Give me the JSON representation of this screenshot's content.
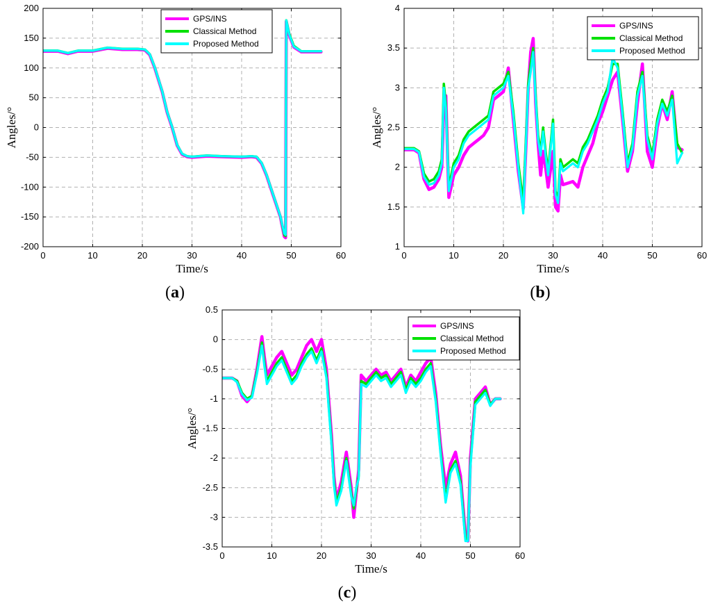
{
  "colors": {
    "gps_ins": "#ff00ff",
    "classical": "#00e000",
    "proposed": "#00ffff"
  },
  "chart_data": [
    {
      "id": "a",
      "type": "line",
      "panel_label": "(a)",
      "xlabel": "Time/s",
      "ylabel": "Angles/°",
      "xlim": [
        0,
        60
      ],
      "ylim": [
        -200,
        200
      ],
      "xticks": [
        0,
        10,
        20,
        30,
        40,
        50,
        60
      ],
      "yticks": [
        -200,
        -150,
        -100,
        -50,
        0,
        50,
        100,
        150,
        200
      ],
      "grid": true,
      "legend": "top-right",
      "series": [
        {
          "name": "GPS/INS",
          "color_key": "gps_ins",
          "x": [
            0,
            3,
            5,
            7,
            10,
            13,
            16,
            19,
            20.5,
            21.5,
            22.5,
            24,
            25,
            26,
            27,
            28,
            29,
            30,
            33,
            36,
            40,
            42,
            43,
            44,
            45,
            46,
            47,
            47.8,
            48.6,
            48.85,
            49,
            49.6,
            50.5,
            52,
            54,
            56
          ],
          "y": [
            128,
            128,
            124,
            128,
            128,
            133,
            131,
            131,
            130,
            122,
            100,
            60,
            25,
            0,
            -30,
            -45,
            -49,
            -50,
            -48,
            -49,
            -50,
            -49,
            -50,
            -60,
            -80,
            -105,
            -130,
            -150,
            -183,
            -185,
            178,
            155,
            135,
            127,
            127,
            127
          ]
        },
        {
          "name": "Classical Method",
          "color_key": "classical",
          "x": [
            0,
            3,
            5,
            7,
            10,
            13,
            16,
            19,
            20.5,
            21.5,
            22.5,
            24,
            25,
            26,
            27,
            28,
            29,
            30,
            33,
            36,
            40,
            42,
            43,
            44,
            45,
            46,
            47,
            47.8,
            48.6,
            48.85,
            49,
            49.6,
            50.5,
            52,
            54,
            56
          ],
          "y": [
            129,
            129,
            125,
            129,
            129,
            134,
            132,
            132,
            131,
            123,
            101,
            61,
            26,
            1,
            -29,
            -44,
            -48,
            -49,
            -47,
            -48,
            -49,
            -48,
            -49,
            -59,
            -79,
            -104,
            -129,
            -149,
            -180,
            -182,
            180,
            157,
            137,
            128,
            128,
            128
          ]
        },
        {
          "name": "Proposed Method",
          "color_key": "proposed",
          "x": [
            0,
            3,
            5,
            7,
            10,
            13,
            16,
            19,
            20.5,
            21.5,
            22.5,
            24,
            25,
            26,
            27,
            28,
            29,
            30,
            33,
            36,
            40,
            42,
            43,
            44,
            45,
            46,
            47,
            47.8,
            48.6,
            48.85,
            49,
            49.6,
            50.5,
            52,
            54,
            56
          ],
          "y": [
            129,
            129,
            125,
            129,
            129,
            134,
            132,
            132,
            131,
            123,
            101,
            61,
            26,
            1,
            -29,
            -44,
            -48,
            -49,
            -47,
            -48,
            -49,
            -48,
            -49,
            -59,
            -79,
            -104,
            -129,
            -149,
            -178,
            -180,
            180,
            156,
            136,
            128,
            128,
            128
          ]
        }
      ]
    },
    {
      "id": "b",
      "type": "line",
      "panel_label": "(b)",
      "xlabel": "Time/s",
      "ylabel": "Angles/°",
      "xlim": [
        0,
        60
      ],
      "ylim": [
        1,
        4
      ],
      "xticks": [
        0,
        10,
        20,
        30,
        40,
        50,
        60
      ],
      "yticks": [
        1,
        1.5,
        2,
        2.5,
        3,
        3.5,
        4
      ],
      "grid": true,
      "legend": "top-right",
      "series": [
        {
          "name": "GPS/INS",
          "color_key": "gps_ins",
          "x": [
            0,
            2,
            3,
            4,
            5,
            6,
            7,
            7.6,
            8,
            8.4,
            9,
            10,
            11,
            12,
            13,
            14,
            15,
            16,
            17,
            18,
            19,
            20,
            21,
            22,
            23,
            24,
            24.5,
            25,
            25.5,
            26,
            26.5,
            27,
            27.5,
            28,
            28.5,
            29,
            30,
            30.5,
            31,
            31.5,
            32,
            33,
            34,
            35,
            36,
            37,
            38,
            39,
            40,
            41,
            42,
            43,
            44,
            45,
            46,
            47,
            48,
            49,
            50,
            51,
            52,
            53,
            54,
            55,
            56
          ],
          "y": [
            2.22,
            2.22,
            2.18,
            1.85,
            1.72,
            1.75,
            1.85,
            2.0,
            2.8,
            2.9,
            1.62,
            1.9,
            2.0,
            2.15,
            2.25,
            2.3,
            2.35,
            2.4,
            2.5,
            2.85,
            2.9,
            2.95,
            3.25,
            2.6,
            1.95,
            1.48,
            2.2,
            3.0,
            3.45,
            3.62,
            2.8,
            2.3,
            1.9,
            2.2,
            2.0,
            1.75,
            2.2,
            1.5,
            1.45,
            1.9,
            1.78,
            1.8,
            1.82,
            1.75,
            2.0,
            2.15,
            2.3,
            2.55,
            2.7,
            2.9,
            3.1,
            3.2,
            2.6,
            1.95,
            2.2,
            2.8,
            3.3,
            2.2,
            2.0,
            2.5,
            2.8,
            2.6,
            2.95,
            2.25,
            2.22
          ]
        },
        {
          "name": "Classical Method",
          "color_key": "classical",
          "x": [
            0,
            2,
            3,
            4,
            5,
            6,
            7,
            7.6,
            8,
            8.4,
            9,
            10,
            11,
            12,
            13,
            14,
            15,
            16,
            17,
            18,
            19,
            20,
            21,
            22,
            23,
            24,
            24.5,
            25,
            25.5,
            26,
            26.5,
            27,
            27.5,
            28,
            28.5,
            29,
            30,
            30.5,
            31,
            31.5,
            32,
            33,
            34,
            35,
            36,
            37,
            38,
            39,
            40,
            41,
            42,
            43,
            44,
            45,
            46,
            47,
            48,
            49,
            50,
            51,
            52,
            53,
            54,
            55,
            56
          ],
          "y": [
            2.24,
            2.24,
            2.2,
            1.92,
            1.82,
            1.85,
            1.95,
            2.1,
            3.05,
            2.8,
            1.75,
            2.05,
            2.15,
            2.35,
            2.45,
            2.5,
            2.55,
            2.6,
            2.65,
            2.95,
            3.0,
            3.05,
            3.2,
            2.7,
            2.05,
            1.55,
            2.3,
            3.05,
            3.3,
            3.5,
            2.9,
            2.4,
            2.2,
            2.5,
            2.2,
            1.95,
            2.6,
            1.7,
            1.6,
            2.1,
            2.0,
            2.05,
            2.1,
            2.05,
            2.25,
            2.35,
            2.5,
            2.65,
            2.85,
            3.0,
            3.3,
            3.3,
            2.7,
            2.05,
            2.3,
            2.95,
            3.2,
            2.4,
            2.15,
            2.6,
            2.85,
            2.7,
            2.9,
            2.3,
            2.18
          ]
        },
        {
          "name": "Proposed Method",
          "color_key": "proposed",
          "x": [
            0,
            2,
            3,
            4,
            5,
            6,
            7,
            7.6,
            8,
            8.4,
            9,
            10,
            11,
            12,
            13,
            14,
            15,
            16,
            17,
            18,
            19,
            20,
            21,
            22,
            23,
            24,
            24.5,
            25,
            25.5,
            26,
            26.5,
            27,
            27.5,
            28,
            28.5,
            29,
            30,
            30.5,
            31,
            31.5,
            32,
            33,
            34,
            35,
            36,
            37,
            38,
            39,
            40,
            41,
            42,
            43,
            44,
            45,
            46,
            47,
            48,
            49,
            50,
            51,
            52,
            53,
            54,
            55,
            56
          ],
          "y": [
            2.23,
            2.23,
            2.19,
            1.88,
            1.78,
            1.8,
            1.9,
            2.05,
            3.0,
            2.75,
            1.7,
            2.0,
            2.1,
            2.3,
            2.4,
            2.45,
            2.5,
            2.55,
            2.6,
            2.9,
            2.95,
            3.0,
            3.15,
            2.65,
            2.0,
            1.42,
            2.25,
            3.0,
            3.2,
            3.45,
            2.85,
            2.35,
            2.15,
            2.45,
            2.15,
            1.9,
            2.55,
            1.65,
            1.55,
            2.05,
            1.95,
            2.0,
            2.05,
            2.0,
            2.2,
            2.3,
            2.45,
            2.6,
            2.8,
            2.95,
            3.38,
            3.25,
            2.65,
            2.0,
            2.25,
            2.9,
            3.15,
            2.35,
            2.1,
            2.55,
            2.8,
            2.65,
            2.85,
            2.05,
            2.18
          ]
        }
      ]
    },
    {
      "id": "c",
      "type": "line",
      "panel_label": "(c)",
      "xlabel": "Time/s",
      "ylabel": "Angles/°",
      "xlim": [
        0,
        60
      ],
      "ylim": [
        -3.5,
        0.5
      ],
      "xticks": [
        0,
        10,
        20,
        30,
        40,
        50,
        60
      ],
      "yticks": [
        -3.5,
        -3,
        -2.5,
        -2,
        -1.5,
        -1,
        -0.5,
        0,
        0.5
      ],
      "grid": true,
      "legend": "top-right",
      "series": [
        {
          "name": "GPS/INS",
          "color_key": "gps_ins",
          "x": [
            0,
            2,
            3,
            4,
            5,
            6,
            7,
            8,
            8.5,
            9,
            10,
            11,
            12,
            13,
            14,
            15,
            16,
            17,
            18,
            19,
            20,
            21,
            22,
            22.5,
            23,
            24,
            25,
            26,
            26.5,
            27,
            27.5,
            28,
            29,
            30,
            31,
            32,
            33,
            34,
            35,
            36,
            37,
            38,
            39,
            40,
            41,
            42,
            43,
            44,
            45,
            46,
            47,
            48,
            49,
            49.5,
            50,
            51,
            52,
            53,
            54,
            55,
            56
          ],
          "y": [
            -0.65,
            -0.65,
            -0.7,
            -0.95,
            -1.05,
            -0.95,
            -0.5,
            0.05,
            -0.3,
            -0.6,
            -0.45,
            -0.3,
            -0.2,
            -0.4,
            -0.6,
            -0.5,
            -0.3,
            -0.1,
            0.0,
            -0.2,
            0.0,
            -0.5,
            -1.6,
            -2.3,
            -2.7,
            -2.4,
            -1.9,
            -2.5,
            -3.0,
            -2.6,
            -2.2,
            -0.6,
            -0.7,
            -0.6,
            -0.5,
            -0.6,
            -0.55,
            -0.7,
            -0.6,
            -0.5,
            -0.8,
            -0.6,
            -0.7,
            -0.55,
            -0.4,
            -0.3,
            -0.9,
            -1.8,
            -2.5,
            -2.1,
            -1.9,
            -2.3,
            -3.3,
            -3.4,
            -2.0,
            -1.0,
            -0.9,
            -0.8,
            -1.1,
            -1.0,
            -1.0
          ]
        },
        {
          "name": "Classical Method",
          "color_key": "classical",
          "x": [
            0,
            2,
            3,
            4,
            5,
            6,
            7,
            8,
            8.5,
            9,
            10,
            11,
            12,
            13,
            14,
            15,
            16,
            17,
            18,
            19,
            20,
            21,
            22,
            22.5,
            23,
            24,
            25,
            26,
            26.5,
            27,
            27.5,
            28,
            29,
            30,
            31,
            32,
            33,
            34,
            35,
            36,
            37,
            38,
            39,
            40,
            41,
            42,
            43,
            44,
            45,
            46,
            47,
            48,
            49,
            49.5,
            50,
            51,
            52,
            53,
            54,
            55,
            56
          ],
          "y": [
            -0.65,
            -0.65,
            -0.7,
            -0.9,
            -1.0,
            -0.95,
            -0.55,
            -0.05,
            -0.4,
            -0.7,
            -0.55,
            -0.4,
            -0.3,
            -0.5,
            -0.7,
            -0.6,
            -0.4,
            -0.25,
            -0.15,
            -0.35,
            -0.15,
            -0.6,
            -1.7,
            -2.4,
            -2.75,
            -2.5,
            -2.0,
            -2.6,
            -2.85,
            -2.55,
            -2.3,
            -0.7,
            -0.75,
            -0.65,
            -0.55,
            -0.65,
            -0.6,
            -0.75,
            -0.65,
            -0.55,
            -0.85,
            -0.65,
            -0.75,
            -0.65,
            -0.5,
            -0.4,
            -1.0,
            -1.9,
            -2.7,
            -2.2,
            -2.05,
            -2.4,
            -3.35,
            -3.38,
            -2.1,
            -1.05,
            -0.95,
            -0.85,
            -1.1,
            -1.0,
            -1.0
          ]
        },
        {
          "name": "Proposed Method",
          "color_key": "proposed",
          "x": [
            0,
            2,
            3,
            4,
            5,
            6,
            7,
            8,
            8.5,
            9,
            10,
            11,
            12,
            13,
            14,
            15,
            16,
            17,
            18,
            19,
            20,
            21,
            22,
            22.5,
            23,
            24,
            25,
            26,
            26.5,
            27,
            27.5,
            28,
            29,
            30,
            31,
            32,
            33,
            34,
            35,
            36,
            37,
            38,
            39,
            40,
            41,
            42,
            43,
            44,
            45,
            46,
            47,
            48,
            49,
            49.5,
            50,
            51,
            52,
            53,
            54,
            55,
            56
          ],
          "y": [
            -0.65,
            -0.65,
            -0.72,
            -0.92,
            -1.02,
            -0.98,
            -0.58,
            -0.1,
            -0.45,
            -0.75,
            -0.6,
            -0.45,
            -0.35,
            -0.55,
            -0.75,
            -0.65,
            -0.45,
            -0.3,
            -0.2,
            -0.4,
            -0.2,
            -0.65,
            -1.75,
            -2.45,
            -2.8,
            -2.55,
            -2.05,
            -2.65,
            -2.8,
            -2.5,
            -2.35,
            -0.75,
            -0.8,
            -0.7,
            -0.6,
            -0.7,
            -0.65,
            -0.8,
            -0.7,
            -0.6,
            -0.9,
            -0.7,
            -0.8,
            -0.7,
            -0.55,
            -0.45,
            -1.05,
            -1.95,
            -2.75,
            -2.25,
            -2.1,
            -2.45,
            -3.4,
            -3.4,
            -2.15,
            -1.1,
            -1.0,
            -0.9,
            -1.12,
            -1.0,
            -1.0
          ]
        }
      ]
    }
  ]
}
